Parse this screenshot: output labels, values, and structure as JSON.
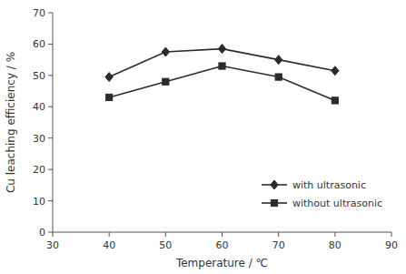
{
  "chart_data": {
    "type": "line",
    "x": [
      40,
      50,
      60,
      70,
      80
    ],
    "series": [
      {
        "name": "with ultrasonic",
        "color": "#2b2b2b",
        "marker": "diamond",
        "values": [
          49.5,
          57.5,
          58.5,
          55.0,
          51.5
        ]
      },
      {
        "name": "without ultrasonic",
        "color": "#2b2b2b",
        "marker": "square",
        "values": [
          43.0,
          48.0,
          53.0,
          49.5,
          42.0
        ]
      }
    ],
    "xlabel": "Temperature / ℃",
    "ylabel": "Cu leaching efficiency / %",
    "xlim": [
      30,
      90
    ],
    "ylim": [
      0,
      70
    ],
    "xticks": [
      30,
      40,
      50,
      60,
      70,
      80,
      90
    ],
    "yticks": [
      0,
      10,
      20,
      30,
      40,
      50,
      60,
      70
    ],
    "grid": false,
    "legend": "lower right"
  }
}
